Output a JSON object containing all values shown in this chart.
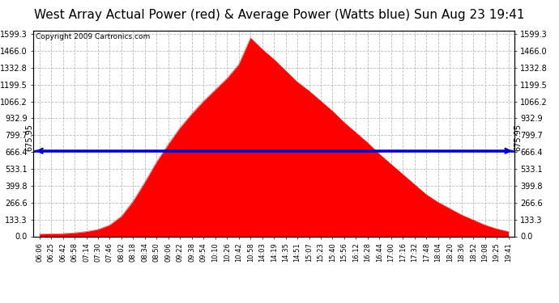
{
  "title": "West Array Actual Power (red) & Average Power (Watts blue) Sun Aug 23 19:41",
  "copyright": "Copyright 2009 Cartronics.com",
  "average_power": 675.95,
  "ymax": 1599.3,
  "ymin": 0.0,
  "yticks": [
    0.0,
    133.3,
    266.6,
    399.8,
    533.1,
    666.4,
    799.7,
    932.9,
    1066.2,
    1199.5,
    1332.8,
    1466.0,
    1599.3
  ],
  "background_color": "#ffffff",
  "fill_color": "#ff0000",
  "avg_line_color": "#0000cc",
  "grid_color": "#bbbbbb",
  "title_fontsize": 11,
  "tick_labels": [
    "06:06",
    "06:25",
    "06:42",
    "06:58",
    "07:14",
    "07:30",
    "07:46",
    "08:02",
    "08:18",
    "08:34",
    "08:50",
    "09:06",
    "09:22",
    "09:38",
    "09:54",
    "10:10",
    "10:26",
    "10:42",
    "10:58",
    "14:03",
    "14:19",
    "14:35",
    "14:51",
    "15:07",
    "15:23",
    "15:40",
    "15:56",
    "16:12",
    "16:28",
    "16:44",
    "17:00",
    "17:16",
    "17:32",
    "17:48",
    "18:04",
    "18:20",
    "18:36",
    "18:52",
    "19:08",
    "19:25",
    "19:41"
  ],
  "curve_values": [
    18,
    20,
    22,
    28,
    38,
    55,
    90,
    160,
    280,
    430,
    590,
    730,
    860,
    970,
    1070,
    1160,
    1250,
    1360,
    1570,
    1480,
    1400,
    1310,
    1220,
    1150,
    1070,
    990,
    900,
    820,
    740,
    650,
    570,
    490,
    410,
    330,
    270,
    220,
    170,
    130,
    90,
    60,
    38
  ]
}
